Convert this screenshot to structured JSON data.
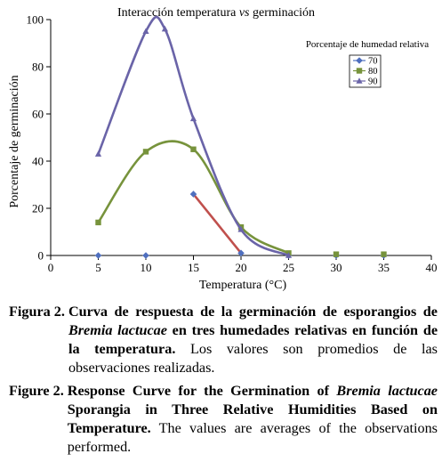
{
  "chart_data": {
    "type": "line",
    "title_parts": [
      "Interacción temperatura ",
      "vs",
      " germinación"
    ],
    "xlabel": "Temperatura (°C)",
    "ylabel": "Porcentaje de germinación",
    "xlim": [
      0,
      40
    ],
    "ylim": [
      0,
      100
    ],
    "xticks": [
      "0",
      "5",
      "10",
      "15",
      "20",
      "25",
      "30",
      "35",
      "40"
    ],
    "yticks": [
      "0",
      "20",
      "40",
      "60",
      "80",
      "100"
    ],
    "legend_title": "Porcentaje de humedad relativa",
    "legend_position": "top-right",
    "grid": false,
    "series": [
      {
        "name": "70",
        "color": "#c0504d",
        "marker_color": "#4f6fbf",
        "marker": "diamond",
        "points": [
          [
            5,
            0
          ],
          [
            10,
            0
          ],
          [
            15,
            26
          ],
          [
            20,
            1
          ],
          [
            25,
            0
          ],
          [
            30,
            0
          ],
          [
            35,
            0
          ]
        ],
        "curve_from_x": 15,
        "curve_to_x": 20
      },
      {
        "name": "80",
        "color": "#77933c",
        "marker_color": "#77933c",
        "marker": "square",
        "points": [
          [
            5,
            14
          ],
          [
            10,
            44
          ],
          [
            15,
            45
          ],
          [
            20,
            12
          ],
          [
            25,
            1
          ],
          [
            30,
            0.5
          ],
          [
            35,
            0.5
          ]
        ],
        "curve_from_x": 5,
        "curve_to_x": 25
      },
      {
        "name": "90",
        "color": "#6a64a8",
        "marker_color": "#6a64a8",
        "marker": "triangle",
        "points": [
          [
            5,
            43
          ],
          [
            10,
            95
          ],
          [
            12,
            96
          ],
          [
            15,
            58
          ],
          [
            20,
            11
          ],
          [
            25,
            0
          ]
        ],
        "curve_from_x": 5,
        "curve_to_x": 25
      }
    ]
  },
  "caption_es": {
    "label": "Figura 2.",
    "bold1": "Curva de respuesta de la germinación de esporangios de ",
    "italic": "Bremia lactucae",
    "bold2": " en tres humedades relativas en función de la temperatura.",
    "rest": " Los valores son promedios de las observaciones realizadas."
  },
  "caption_en": {
    "label": "Figure 2.",
    "bold1": "Response Curve for the Germination of ",
    "italic": "Bremia lactucae",
    "bold2": " Sporangia in Three Relative Humidities Based on Temperature.",
    "rest": " The values are averages of the observations performed."
  }
}
